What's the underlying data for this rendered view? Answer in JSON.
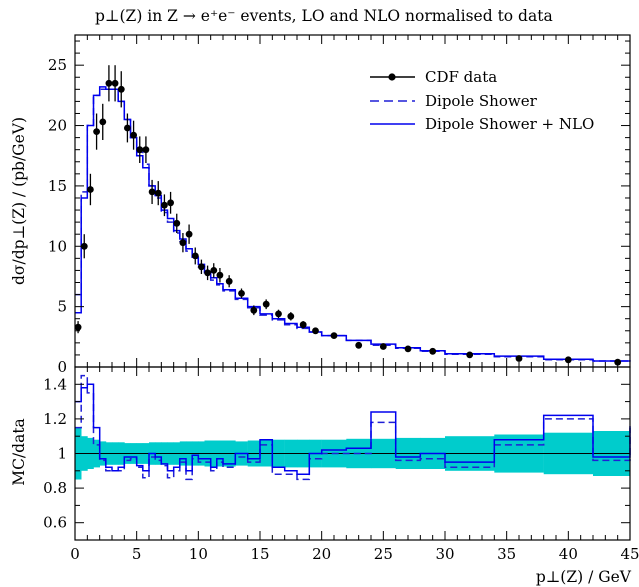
{
  "chart_data": [
    {
      "type": "line",
      "title": "p⊥(Z) in Z → e⁺e⁻ events, LO and NLO normalised to data",
      "xlabel": "",
      "ylabel": "dσ/dp⊥(Z) / (pb/GeV)",
      "xlim": [
        0,
        45
      ],
      "ylim": [
        0,
        27.5
      ],
      "yticks": [
        0,
        5,
        10,
        15,
        20,
        25
      ],
      "grid": false,
      "legend": "top-right",
      "colors": {
        "data": "#000000",
        "dipole": "#1f1fd6",
        "nlo": "#0000ee"
      },
      "series": [
        {
          "name": "CDF data",
          "x": [
            0.25,
            0.75,
            1.25,
            1.75,
            2.25,
            2.75,
            3.25,
            3.75,
            4.25,
            4.75,
            5.25,
            5.75,
            6.25,
            6.75,
            7.25,
            7.75,
            8.25,
            8.75,
            9.25,
            9.75,
            10.25,
            10.75,
            11.25,
            11.75,
            12.5,
            13.5,
            14.5,
            15.5,
            16.5,
            17.5,
            18.5,
            19.5,
            21.0,
            23.0,
            25.0,
            27.0,
            29.0,
            32.0,
            36.0,
            40.0,
            44.0
          ],
          "y": [
            3.3,
            10.0,
            14.7,
            19.5,
            20.3,
            23.5,
            23.5,
            23.0,
            19.8,
            19.2,
            18.0,
            18.0,
            14.5,
            14.4,
            13.4,
            13.6,
            11.9,
            10.3,
            11.0,
            9.2,
            8.3,
            7.8,
            8.0,
            7.6,
            7.1,
            6.1,
            4.7,
            5.2,
            4.4,
            4.2,
            3.5,
            3.0,
            2.6,
            1.8,
            1.7,
            1.5,
            1.3,
            1.0,
            0.7,
            0.6,
            0.4
          ],
          "yerr": [
            0.5,
            1.0,
            1.3,
            1.5,
            1.5,
            1.5,
            1.5,
            1.5,
            1.2,
            1.2,
            1.1,
            1.1,
            1.0,
            1.0,
            0.9,
            0.9,
            0.8,
            0.8,
            0.8,
            0.7,
            0.6,
            0.6,
            0.6,
            0.6,
            0.5,
            0.4,
            0.4,
            0.4,
            0.35,
            0.35,
            0.3,
            0.25,
            0.2,
            0.15,
            0.15,
            0.12,
            0.1,
            0.08,
            0.06,
            0.05,
            0.05
          ]
        },
        {
          "name": "Dipole Shower",
          "edges": [
            0,
            0.5,
            1,
            1.5,
            2,
            2.5,
            3,
            3.5,
            4,
            4.5,
            5,
            5.5,
            6,
            6.5,
            7,
            7.5,
            8,
            8.5,
            9,
            9.5,
            10,
            10.5,
            11,
            11.5,
            12,
            13,
            14,
            15,
            16,
            17,
            18,
            19,
            20,
            22,
            24,
            26,
            28,
            30,
            34,
            38,
            42,
            45
          ],
          "values": [
            6.0,
            14.5,
            20.0,
            22.5,
            23.0,
            23.0,
            23.0,
            22.0,
            20.5,
            19.0,
            17.8,
            16.8,
            15.0,
            14.0,
            12.8,
            12.0,
            11.1,
            10.4,
            9.6,
            9.0,
            8.3,
            7.8,
            7.2,
            6.8,
            6.3,
            5.6,
            4.9,
            4.3,
            3.9,
            3.5,
            3.2,
            2.9,
            2.6,
            2.2,
            1.8,
            1.55,
            1.3,
            1.05,
            0.85,
            0.6,
            0.5,
            0.45
          ]
        },
        {
          "name": "Dipole Shower + NLO",
          "edges": [
            0,
            0.5,
            1,
            1.5,
            2,
            2.5,
            3,
            3.5,
            4,
            4.5,
            5,
            5.5,
            6,
            6.5,
            7,
            7.5,
            8,
            8.5,
            9,
            9.5,
            10,
            10.5,
            11,
            11.5,
            12,
            13,
            14,
            15,
            16,
            17,
            18,
            19,
            20,
            22,
            24,
            26,
            28,
            30,
            34,
            38,
            42,
            45
          ],
          "values": [
            4.5,
            14.0,
            20.0,
            22.5,
            23.2,
            23.0,
            23.0,
            22.0,
            20.5,
            19.0,
            17.5,
            16.5,
            15.0,
            14.2,
            13.0,
            12.3,
            11.3,
            10.6,
            9.8,
            9.1,
            8.5,
            7.9,
            7.4,
            6.9,
            6.4,
            5.7,
            5.0,
            4.4,
            4.0,
            3.6,
            3.3,
            2.9,
            2.6,
            2.2,
            1.9,
            1.6,
            1.35,
            1.1,
            0.9,
            0.65,
            0.5,
            0.45
          ]
        }
      ]
    },
    {
      "type": "line",
      "title": "",
      "xlabel": "p⊥(Z) / GeV",
      "ylabel": "MC/data",
      "xlim": [
        0,
        45
      ],
      "ylim": [
        0.5,
        1.5
      ],
      "xticks": [
        0,
        5,
        10,
        15,
        20,
        25,
        30,
        35,
        40,
        45
      ],
      "yticks": [
        0.6,
        0.8,
        1,
        1.2,
        1.4
      ],
      "reference": 1,
      "colors": {
        "band": "#00cccc",
        "dipole": "#1f1fd6",
        "nlo": "#0000ee"
      },
      "band": {
        "name": "data uncertainty",
        "edges": [
          0,
          0.5,
          1,
          1.5,
          2,
          2.5,
          3,
          3.5,
          4,
          4.5,
          5,
          5.5,
          6,
          6.5,
          7,
          7.5,
          8,
          8.5,
          9,
          9.5,
          10,
          10.5,
          11,
          11.5,
          12,
          13,
          14,
          15,
          16,
          17,
          18,
          19,
          20,
          22,
          24,
          26,
          28,
          30,
          34,
          38,
          42,
          45
        ],
        "half_width": [
          0.15,
          0.1,
          0.09,
          0.08,
          0.07,
          0.065,
          0.065,
          0.065,
          0.06,
          0.06,
          0.06,
          0.06,
          0.065,
          0.065,
          0.065,
          0.065,
          0.065,
          0.07,
          0.07,
          0.07,
          0.07,
          0.075,
          0.075,
          0.075,
          0.075,
          0.07,
          0.075,
          0.075,
          0.08,
          0.08,
          0.08,
          0.08,
          0.08,
          0.085,
          0.085,
          0.09,
          0.09,
          0.1,
          0.11,
          0.12,
          0.13,
          0.14
        ]
      },
      "series": [
        {
          "name": "Dipole Shower",
          "edges": [
            0,
            0.5,
            1,
            1.5,
            2,
            2.5,
            3,
            3.5,
            4,
            4.5,
            5,
            5.5,
            6,
            6.5,
            7,
            7.5,
            8,
            8.5,
            9,
            9.5,
            10,
            10.5,
            11,
            11.5,
            12,
            13,
            14,
            15,
            16,
            17,
            18,
            19,
            20,
            22,
            24,
            26,
            28,
            30,
            34,
            38,
            42,
            45
          ],
          "values": [
            1.15,
            1.45,
            1.35,
            1.05,
            0.96,
            0.9,
            0.9,
            0.9,
            0.96,
            0.97,
            0.92,
            0.86,
            0.98,
            0.96,
            0.93,
            0.86,
            0.9,
            0.95,
            0.85,
            0.97,
            0.95,
            0.95,
            0.9,
            0.95,
            0.92,
            0.98,
            0.95,
            1.05,
            0.88,
            0.88,
            0.85,
            0.97,
            1.0,
            1.0,
            1.18,
            0.96,
            0.97,
            0.92,
            1.05,
            1.2,
            0.96,
            1.18
          ]
        },
        {
          "name": "Dipole Shower + NLO",
          "edges": [
            0,
            0.5,
            1,
            1.5,
            2,
            2.5,
            3,
            3.5,
            4,
            4.5,
            5,
            5.5,
            6,
            6.5,
            7,
            7.5,
            8,
            8.5,
            9,
            9.5,
            10,
            10.5,
            11,
            11.5,
            12,
            13,
            14,
            15,
            16,
            17,
            18,
            19,
            20,
            22,
            24,
            26,
            28,
            30,
            34,
            38,
            42,
            45
          ],
          "values": [
            1.3,
            1.38,
            1.4,
            1.15,
            0.97,
            0.92,
            0.9,
            0.92,
            0.98,
            0.98,
            0.93,
            0.9,
            1.0,
            0.98,
            0.94,
            0.9,
            0.92,
            0.97,
            0.9,
            0.99,
            0.97,
            0.97,
            0.92,
            0.97,
            0.94,
            1.0,
            0.97,
            1.08,
            0.92,
            0.9,
            0.88,
            1.0,
            1.02,
            1.03,
            1.24,
            0.98,
            1.0,
            0.95,
            1.08,
            1.22,
            0.98,
            1.15
          ]
        }
      ]
    }
  ]
}
